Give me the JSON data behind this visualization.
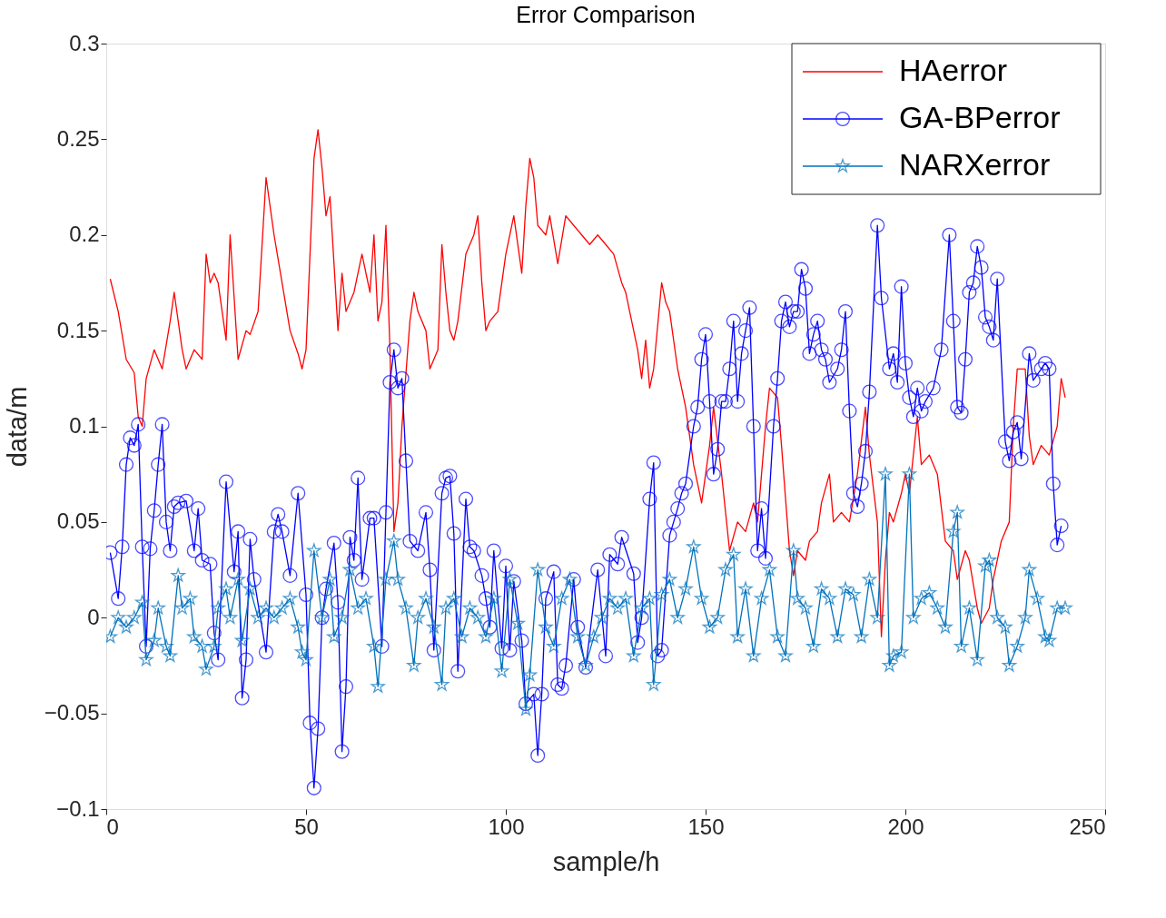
{
  "chart_data": {
    "type": "line",
    "title": "Error Comparison",
    "xlabel": "sample/h",
    "ylabel": "data/m",
    "xlim": [
      0,
      250
    ],
    "xticks": [
      0,
      50,
      100,
      150,
      200,
      250
    ],
    "ylim": [
      -0.1,
      0.3
    ],
    "yticks": [
      -0.1,
      -0.05,
      0,
      0.05,
      0.1,
      0.15,
      0.2,
      0.25,
      0.3
    ],
    "grid": false,
    "legend": "top right",
    "line_style": "solid",
    "series": [
      {
        "name": "HAerror",
        "color": "#ff0000",
        "marker": "none",
        "x": [
          1,
          3,
          5,
          7,
          8,
          9,
          10,
          12,
          14,
          16,
          17,
          19,
          20,
          22,
          24,
          25,
          26,
          27,
          28,
          30,
          31,
          33,
          35,
          36,
          38,
          40,
          42,
          44,
          46,
          48,
          49,
          50,
          52,
          53,
          54,
          55,
          56,
          58,
          59,
          60,
          62,
          64,
          66,
          67,
          68,
          69,
          70,
          71,
          72,
          73,
          74,
          76,
          77,
          78,
          80,
          81,
          83,
          84,
          85,
          86,
          87,
          88,
          90,
          92,
          93,
          94,
          95,
          96,
          98,
          100,
          102,
          104,
          105,
          106,
          107,
          108,
          110,
          111,
          113,
          115,
          117,
          119,
          121,
          123,
          125,
          127,
          129,
          130,
          131,
          133,
          134,
          135,
          136,
          137,
          139,
          140,
          141,
          143,
          145,
          147,
          148,
          149,
          151,
          152,
          154,
          156,
          158,
          160,
          162,
          163,
          165,
          166,
          168,
          169,
          171,
          172,
          173,
          175,
          176,
          178,
          179,
          181,
          182,
          184,
          186,
          188,
          190,
          191,
          193,
          194,
          195,
          196,
          197,
          199,
          200,
          201,
          203,
          204,
          206,
          208,
          210,
          212,
          213,
          215,
          216,
          218,
          219,
          221,
          222,
          224,
          226,
          227,
          228,
          230,
          231,
          232,
          234,
          236,
          238,
          239,
          240
        ],
        "values": [
          0.177,
          0.16,
          0.135,
          0.128,
          0.105,
          0.1,
          0.125,
          0.14,
          0.13,
          0.155,
          0.17,
          0.14,
          0.13,
          0.14,
          0.135,
          0.19,
          0.175,
          0.18,
          0.175,
          0.145,
          0.2,
          0.135,
          0.15,
          0.148,
          0.16,
          0.23,
          0.2,
          0.175,
          0.15,
          0.138,
          0.13,
          0.14,
          0.24,
          0.255,
          0.235,
          0.21,
          0.22,
          0.15,
          0.18,
          0.16,
          0.17,
          0.19,
          0.17,
          0.2,
          0.155,
          0.165,
          0.205,
          0.14,
          0.045,
          0.06,
          0.1,
          0.155,
          0.17,
          0.16,
          0.15,
          0.13,
          0.14,
          0.195,
          0.17,
          0.15,
          0.145,
          0.155,
          0.19,
          0.2,
          0.21,
          0.175,
          0.15,
          0.155,
          0.16,
          0.19,
          0.21,
          0.18,
          0.215,
          0.24,
          0.23,
          0.205,
          0.2,
          0.21,
          0.185,
          0.21,
          0.205,
          0.2,
          0.195,
          0.2,
          0.195,
          0.19,
          0.175,
          0.17,
          0.16,
          0.14,
          0.125,
          0.145,
          0.12,
          0.13,
          0.175,
          0.165,
          0.16,
          0.13,
          0.11,
          0.08,
          0.07,
          0.06,
          0.09,
          0.11,
          0.075,
          0.035,
          0.05,
          0.045,
          0.06,
          0.05,
          0.1,
          0.12,
          0.115,
          0.09,
          0.035,
          0.022,
          0.035,
          0.03,
          0.04,
          0.045,
          0.06,
          0.075,
          0.05,
          0.055,
          0.05,
          0.075,
          0.11,
          0.085,
          0.05,
          -0.01,
          0.03,
          0.055,
          0.05,
          0.065,
          0.075,
          0.065,
          0.105,
          0.08,
          0.085,
          0.075,
          0.04,
          0.035,
          0.02,
          0.035,
          0.03,
          0.005,
          -0.003,
          0.005,
          0.02,
          0.04,
          0.05,
          0.1,
          0.13,
          0.13,
          0.095,
          0.08,
          0.09,
          0.085,
          0.1,
          0.125,
          0.115
        ]
      },
      {
        "name": "GA-BPerror",
        "color": "#0000ff",
        "marker": "circle",
        "x": [
          1,
          3,
          4,
          5,
          6,
          7,
          8,
          9,
          10,
          11,
          12,
          13,
          14,
          15,
          16,
          17,
          18,
          20,
          22,
          23,
          24,
          26,
          27,
          28,
          30,
          32,
          33,
          34,
          35,
          36,
          37,
          40,
          42,
          43,
          44,
          46,
          48,
          50,
          51,
          52,
          53,
          54,
          55,
          57,
          58,
          59,
          60,
          61,
          62,
          63,
          64,
          66,
          67,
          69,
          70,
          71,
          72,
          73,
          74,
          75,
          76,
          78,
          80,
          81,
          82,
          84,
          85,
          86,
          87,
          88,
          90,
          91,
          92,
          94,
          95,
          96,
          97,
          99,
          100,
          101,
          102,
          104,
          105,
          107,
          108,
          109,
          110,
          112,
          113,
          114,
          115,
          117,
          118,
          120,
          123,
          125,
          126,
          128,
          129,
          132,
          133,
          134,
          136,
          137,
          138,
          139,
          141,
          142,
          143,
          144,
          145,
          147,
          148,
          149,
          150,
          151,
          152,
          153,
          154,
          155,
          156,
          157,
          158,
          159,
          160,
          161,
          162,
          163,
          164,
          165,
          167,
          168,
          169,
          170,
          171,
          172,
          173,
          174,
          175,
          176,
          177,
          178,
          179,
          180,
          181,
          183,
          184,
          185,
          186,
          187,
          188,
          189,
          190,
          191,
          193,
          194,
          196,
          197,
          198,
          199,
          200,
          201,
          202,
          203,
          204,
          205,
          207,
          209,
          211,
          212,
          213,
          214,
          215,
          216,
          217,
          218,
          219,
          220,
          221,
          222,
          223,
          225,
          226,
          227,
          228,
          229,
          231,
          232,
          234,
          235,
          236,
          237,
          238,
          239
        ],
        "values": [
          0.034,
          0.01,
          0.037,
          0.08,
          0.094,
          0.09,
          0.101,
          0.037,
          -0.015,
          0.036,
          0.056,
          0.08,
          0.101,
          0.05,
          0.035,
          0.058,
          0.06,
          0.061,
          0.035,
          0.057,
          0.03,
          0.028,
          -0.008,
          -0.022,
          0.071,
          0.024,
          0.045,
          -0.042,
          -0.022,
          0.041,
          0.02,
          -0.018,
          0.045,
          0.054,
          0.045,
          0.022,
          0.065,
          0.012,
          -0.055,
          -0.089,
          -0.058,
          0.0,
          0.015,
          0.039,
          0.008,
          -0.07,
          -0.036,
          0.042,
          0.03,
          0.073,
          0.02,
          0.052,
          0.052,
          -0.015,
          0.055,
          0.123,
          0.14,
          0.12,
          0.125,
          0.082,
          0.04,
          0.035,
          0.055,
          0.025,
          -0.017,
          0.065,
          0.073,
          0.074,
          0.044,
          -0.028,
          0.062,
          0.037,
          0.035,
          0.022,
          0.01,
          -0.005,
          0.035,
          -0.016,
          0.027,
          -0.017,
          0.019,
          -0.012,
          -0.045,
          -0.04,
          -0.072,
          -0.04,
          0.01,
          0.024,
          -0.035,
          -0.037,
          -0.025,
          0.02,
          -0.005,
          -0.026,
          0.025,
          -0.02,
          0.033,
          0.028,
          0.042,
          0.023,
          -0.013,
          0.0,
          0.062,
          0.081,
          -0.02,
          -0.017,
          0.043,
          0.05,
          0.057,
          0.065,
          0.07,
          0.1,
          0.11,
          0.135,
          0.148,
          0.113,
          0.075,
          0.088,
          0.113,
          0.113,
          0.13,
          0.155,
          0.113,
          0.138,
          0.15,
          0.162,
          0.1,
          0.035,
          0.057,
          0.031,
          0.1,
          0.125,
          0.155,
          0.165,
          0.152,
          0.16,
          0.16,
          0.182,
          0.172,
          0.138,
          0.148,
          0.155,
          0.14,
          0.135,
          0.123,
          0.13,
          0.14,
          0.16,
          0.108,
          0.065,
          0.058,
          0.07,
          0.087,
          0.118,
          0.205,
          0.167,
          0.13,
          0.138,
          0.123,
          0.173,
          0.133,
          0.115,
          0.105,
          0.12,
          0.108,
          0.113,
          0.12,
          0.14,
          0.2,
          0.155,
          0.11,
          0.107,
          0.135,
          0.17,
          0.175,
          0.194,
          0.183,
          0.157,
          0.152,
          0.145,
          0.177,
          0.092,
          0.082,
          0.097,
          0.102,
          0.083,
          0.138,
          0.124,
          0.13,
          0.133,
          0.13,
          0.07,
          0.038,
          0.048
        ]
      },
      {
        "name": "NARXerror",
        "color": "#0072bd",
        "marker": "star",
        "x": [
          1,
          3,
          5,
          7,
          9,
          10,
          12,
          13,
          15,
          16,
          18,
          19,
          21,
          22,
          24,
          25,
          27,
          28,
          30,
          31,
          33,
          34,
          36,
          38,
          40,
          42,
          44,
          46,
          48,
          49,
          50,
          52,
          54,
          56,
          57,
          59,
          61,
          63,
          65,
          67,
          68,
          70,
          72,
          73,
          75,
          77,
          78,
          80,
          82,
          84,
          85,
          87,
          89,
          91,
          93,
          95,
          97,
          99,
          101,
          103,
          105,
          106,
          108,
          110,
          112,
          114,
          116,
          118,
          120,
          122,
          124,
          126,
          128,
          130,
          132,
          134,
          136,
          137,
          139,
          141,
          143,
          145,
          147,
          149,
          151,
          153,
          155,
          157,
          158,
          160,
          162,
          164,
          166,
          168,
          170,
          172,
          173,
          175,
          177,
          179,
          181,
          183,
          185,
          187,
          189,
          191,
          193,
          195,
          196,
          197,
          199,
          201,
          202,
          204,
          206,
          208,
          210,
          212,
          213,
          214,
          216,
          218,
          220,
          221,
          223,
          225,
          226,
          228,
          230,
          231,
          233,
          235,
          236,
          238,
          240
        ],
        "values": [
          -0.01,
          0.0,
          -0.005,
          0.0,
          0.008,
          -0.022,
          -0.012,
          0.005,
          -0.015,
          -0.02,
          0.022,
          0.005,
          0.01,
          -0.01,
          -0.015,
          -0.027,
          -0.015,
          0.005,
          0.015,
          0.0,
          0.02,
          -0.012,
          0.015,
          0.0,
          0.005,
          0.0,
          0.005,
          0.01,
          -0.005,
          -0.018,
          -0.022,
          0.035,
          0.0,
          0.02,
          -0.01,
          0.0,
          0.025,
          0.005,
          0.01,
          -0.015,
          -0.036,
          0.02,
          0.04,
          0.02,
          0.005,
          -0.025,
          0.0,
          0.01,
          -0.005,
          -0.035,
          0.005,
          0.01,
          -0.01,
          0.005,
          0.0,
          -0.01,
          0.01,
          -0.028,
          0.02,
          -0.003,
          -0.048,
          -0.03,
          0.025,
          -0.005,
          -0.015,
          0.01,
          0.02,
          -0.01,
          -0.025,
          -0.01,
          0.0,
          0.01,
          0.005,
          0.01,
          -0.02,
          0.005,
          0.01,
          -0.035,
          0.012,
          0.02,
          0.0,
          0.015,
          0.037,
          0.01,
          -0.005,
          0.0,
          0.025,
          0.033,
          -0.01,
          0.015,
          -0.02,
          0.01,
          0.025,
          -0.01,
          -0.02,
          0.035,
          0.01,
          0.005,
          -0.015,
          0.015,
          0.01,
          -0.01,
          0.015,
          0.012,
          -0.01,
          0.02,
          0.0,
          0.075,
          -0.025,
          -0.02,
          -0.018,
          0.075,
          0.0,
          0.01,
          0.013,
          0.005,
          -0.005,
          0.045,
          0.055,
          -0.015,
          0.005,
          -0.022,
          0.027,
          0.03,
          0.0,
          -0.005,
          -0.025,
          -0.015,
          0.0,
          0.025,
          0.01,
          -0.01,
          -0.012,
          0.005,
          0.005
        ]
      }
    ]
  }
}
